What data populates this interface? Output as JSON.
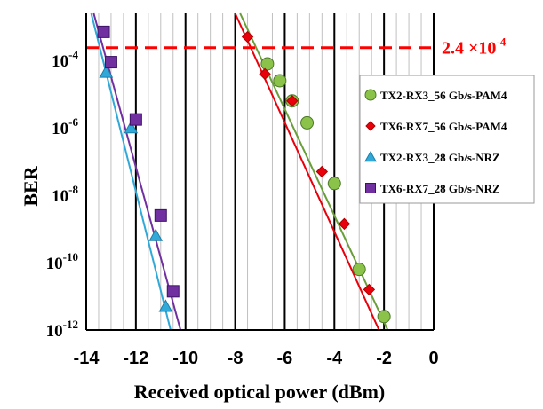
{
  "chart_data": {
    "type": "scatter",
    "title": "",
    "xlabel": "Received optical power (dBm)",
    "ylabel": "BER",
    "xlim": [
      -14,
      0
    ],
    "ylim_log10": [
      -12,
      -2.6
    ],
    "x_ticks": [
      -14,
      -12,
      -10,
      -8,
      -6,
      -4,
      -2,
      0
    ],
    "x_tick_labels": [
      "-14",
      "-12",
      "-10",
      "-8",
      "-6",
      "-4",
      "-2",
      "0"
    ],
    "y_ticks_log10": [
      -12,
      -10,
      -8,
      -6,
      -4
    ],
    "y_tick_bases": [
      "10",
      "10",
      "10",
      "10",
      "10"
    ],
    "y_tick_exponents": [
      "-12",
      "-10",
      "-8",
      "-6",
      "-4"
    ],
    "grid": true,
    "legend_position": "right",
    "threshold": {
      "log10": -3.62,
      "label_mantissa": "2.4 ×10",
      "label_exponent": "-4",
      "color": "#ff0000"
    },
    "series": [
      {
        "name": "TX2-RX3_56 Gb/s-PAM4",
        "marker": "circle",
        "color": "#8bc34a",
        "line_color": "#6a9e3a",
        "x": [
          -6.7,
          -6.2,
          -5.7,
          -5.1,
          -4.0,
          -3.0,
          -2.0
        ],
        "log10_y": [
          -4.1,
          -4.6,
          -5.2,
          -5.85,
          -7.65,
          -10.2,
          -11.6
        ],
        "fit_x": [
          -7.8,
          -1.85
        ],
        "fit_log10_y": [
          -2.6,
          -12.0
        ]
      },
      {
        "name": "TX6-RX7_56 Gb/s-PAM4",
        "marker": "diamond",
        "color": "#e8000b",
        "line_color": "#e8000b",
        "x": [
          -7.5,
          -6.8,
          -5.7,
          -4.5,
          -3.6,
          -2.6
        ],
        "log10_y": [
          -3.3,
          -4.4,
          -5.2,
          -7.3,
          -8.85,
          -10.8
        ],
        "fit_x": [
          -8.0,
          -2.2
        ],
        "fit_log10_y": [
          -2.6,
          -12.0
        ]
      },
      {
        "name": "TX2-RX3_28 Gb/s-NRZ",
        "marker": "triangle",
        "color": "#30a8d8",
        "line_color": "#30a8d8",
        "x": [
          -13.2,
          -12.2,
          -11.2,
          -10.8
        ],
        "log10_y": [
          -4.35,
          -6.0,
          -9.2,
          -11.3
        ],
        "fit_x": [
          -13.8,
          -10.6
        ],
        "fit_log10_y": [
          -2.6,
          -12.0
        ]
      },
      {
        "name": "TX6-RX7_28 Gb/s-NRZ",
        "marker": "square",
        "color": "#7030a0",
        "line_color": "#7030a0",
        "x": [
          -13.3,
          -13.0,
          -12.0,
          -11.0,
          -10.5
        ],
        "log10_y": [
          -3.15,
          -4.05,
          -5.75,
          -8.6,
          -10.85
        ],
        "fit_x": [
          -13.7,
          -10.2
        ],
        "fit_log10_y": [
          -2.6,
          -12.0
        ]
      }
    ]
  }
}
